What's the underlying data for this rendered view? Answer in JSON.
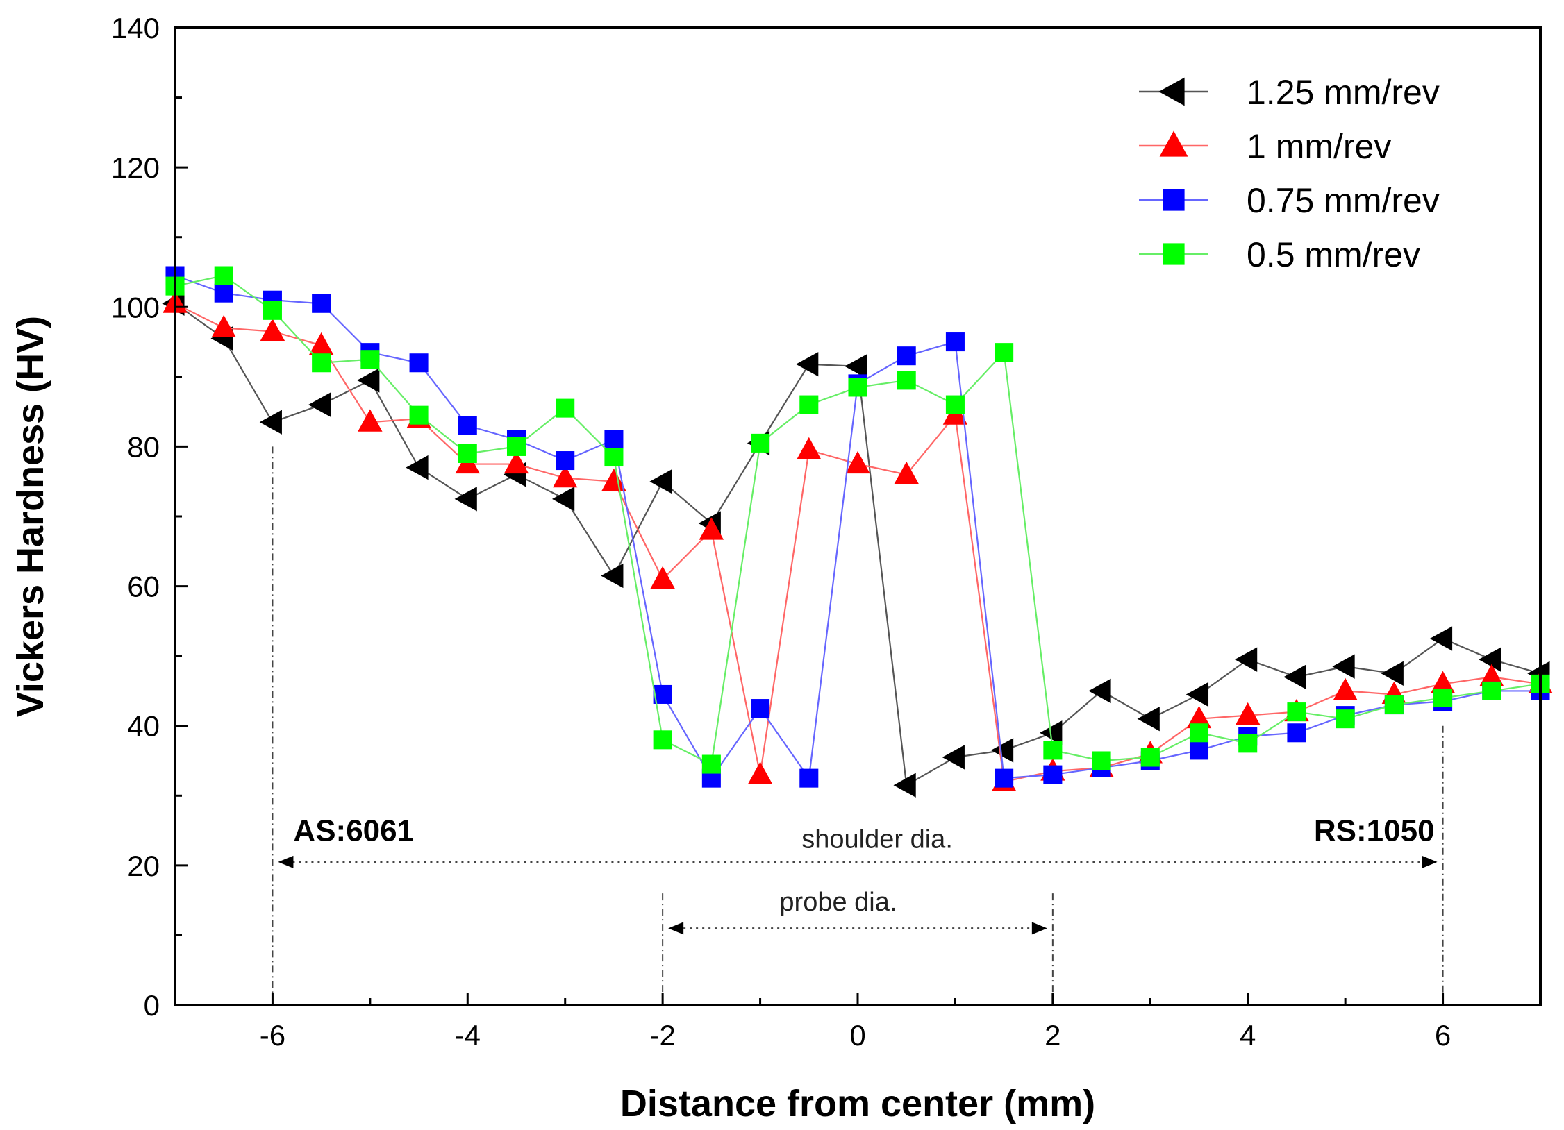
{
  "chart_data": {
    "type": "line",
    "title": "",
    "xlabel": "Distance from center (mm)",
    "ylabel": "Vickers Hardness (HV)",
    "xlim": [
      -7,
      7
    ],
    "ylim": [
      0,
      140
    ],
    "xticks": [
      -6,
      -4,
      -2,
      0,
      2,
      4,
      6
    ],
    "yticks": [
      0,
      20,
      40,
      60,
      80,
      100,
      120,
      140
    ],
    "grid": false,
    "legend_position": "top-right",
    "series": [
      {
        "name": "1.25 mm/rev",
        "color": "#000000",
        "line_color": "#555555",
        "marker": "triangle-left",
        "x": [
          -7,
          -6.5,
          -6,
          -5.5,
          -5,
          -4.5,
          -4,
          -3.5,
          -3,
          -2.5,
          -2,
          -1.5,
          -1,
          -0.5,
          0,
          0.5,
          1,
          1.5,
          2,
          2.5,
          3,
          3.5,
          4,
          4.5,
          5,
          5.5,
          6,
          6.5,
          7
        ],
        "values": [
          100.5,
          95.5,
          83.5,
          86,
          89.5,
          77,
          72.5,
          76,
          72.5,
          61.5,
          75,
          69,
          80.5,
          91.8,
          91.5,
          31.5,
          35.5,
          36.5,
          39,
          45,
          41,
          44.5,
          49.5,
          47,
          48.5,
          47.5,
          52.5,
          49.5,
          47.5
        ]
      },
      {
        "name": "1 mm/rev",
        "color": "#ff0000",
        "line_color": "#ff6666",
        "marker": "triangle-up",
        "x": [
          -7,
          -6.5,
          -6,
          -5.5,
          -5,
          -4.5,
          -4,
          -3.5,
          -3,
          -2.5,
          -2,
          -1.5,
          -1,
          -0.5,
          0,
          0.5,
          1,
          1.5,
          2,
          2.5,
          3,
          3.5,
          4,
          4.5,
          5,
          5.5,
          6,
          6.5,
          7
        ],
        "values": [
          100.5,
          97,
          96.5,
          94.5,
          83.5,
          84,
          77.5,
          77.5,
          75.5,
          75,
          61,
          68,
          33,
          79.5,
          77.5,
          76,
          84.5,
          32,
          33.5,
          34,
          36,
          41,
          41.5,
          42,
          45,
          44.5,
          46,
          47,
          46
        ]
      },
      {
        "name": "0.75 mm/rev",
        "color": "#0000ff",
        "line_color": "#6666ff",
        "marker": "square",
        "x": [
          -7,
          -6.5,
          -6,
          -5.5,
          -5,
          -4.5,
          -4,
          -3.5,
          -3,
          -2.5,
          -2,
          -1.5,
          -1,
          -0.5,
          0,
          0.5,
          1,
          1.5,
          2,
          2.5,
          3,
          3.5,
          4,
          4.5,
          5,
          5.5,
          6,
          6.5,
          7
        ],
        "values": [
          104.5,
          102,
          101,
          100.5,
          93.5,
          92,
          83,
          81,
          78,
          81,
          44.5,
          32.5,
          42.5,
          32.5,
          89,
          93,
          95,
          32.5,
          33,
          34,
          35,
          36.5,
          38.5,
          39,
          41.5,
          43,
          43.5,
          45,
          45
        ]
      },
      {
        "name": "0.5 mm/rev",
        "color": "#00ff00",
        "line_color": "#66ee66",
        "marker": "square",
        "x": [
          -7,
          -6.5,
          -6,
          -5.5,
          -5,
          -4.5,
          -4,
          -3.5,
          -3,
          -2.5,
          -2,
          -1.5,
          -1,
          -0.5,
          0,
          0.5,
          1,
          1.5,
          2,
          2.5,
          3,
          3.5,
          4,
          4.5,
          5,
          5.5,
          6,
          6.5,
          7
        ],
        "values": [
          103,
          104.5,
          99.5,
          92,
          92.5,
          84.5,
          79,
          80,
          85.5,
          78.5,
          38,
          34.5,
          80.5,
          86,
          88.5,
          89.5,
          86,
          93.5,
          36.5,
          35,
          35.5,
          39,
          37.5,
          42,
          41,
          43,
          44,
          45,
          46
        ]
      }
    ],
    "annotations": {
      "as_label": "AS:6061",
      "rs_label": "RS:1050",
      "shoulder_label": "shoulder dia.",
      "probe_label": "probe dia.",
      "shoulder_range": [
        -6,
        6
      ],
      "shoulder_arrow_y": 20.5,
      "probe_range": [
        -2,
        2
      ],
      "probe_arrow_y": 11
    }
  }
}
